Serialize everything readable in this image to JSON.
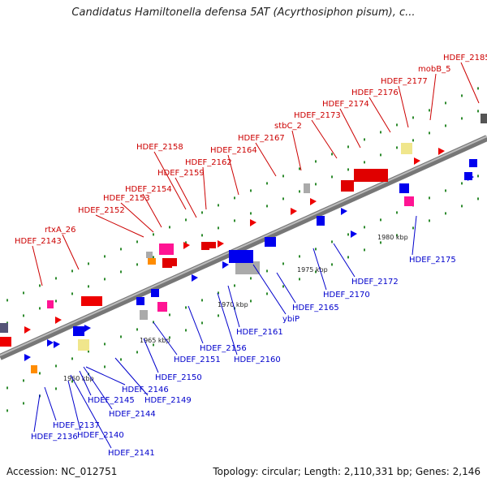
{
  "title": "Candidatus Hamiltonella defensa 5AT (Acyrthosiphon pisum), c...",
  "footer": {
    "accession": "Accession: NC_012751",
    "topology": "Topology: circular; Length: 2,110,331 bp; Genes: 2,146"
  },
  "colors": {
    "forward_label": "#cc0000",
    "reverse_label": "#0000cc",
    "backbone": "#888888",
    "tick": "#2e8b2e"
  },
  "scale_labels": [
    "1960 kbp",
    "1965 kbp",
    "1970 kbp",
    "1975 kbp",
    "1980 kbp"
  ],
  "top_genes": [
    "HDEF_2143",
    "rtxA_26",
    "HDEF_2152",
    "HDEF_2153",
    "HDEF_2154",
    "HDEF_2159",
    "HDEF_2158",
    "HDEF_2162",
    "HDEF_2164",
    "HDEF_2167",
    "stbC_2",
    "HDEF_2173",
    "HDEF_2174",
    "HDEF_2176",
    "HDEF_2177",
    "mobB_5",
    "HDEF_2185"
  ],
  "bottom_genes": [
    "HDEF_2136",
    "HDEF_2137",
    "HDEF_2140",
    "HDEF_2141",
    "HDEF_2144",
    "HDEF_2145",
    "HDEF_2146",
    "HDEF_2149",
    "HDEF_2150",
    "HDEF_2151",
    "HDEF_2156",
    "HDEF_2160",
    "HDEF_2161",
    "ybiP",
    "HDEF_2165",
    "HDEF_2170",
    "HDEF_2172",
    "HDEF_2175"
  ]
}
